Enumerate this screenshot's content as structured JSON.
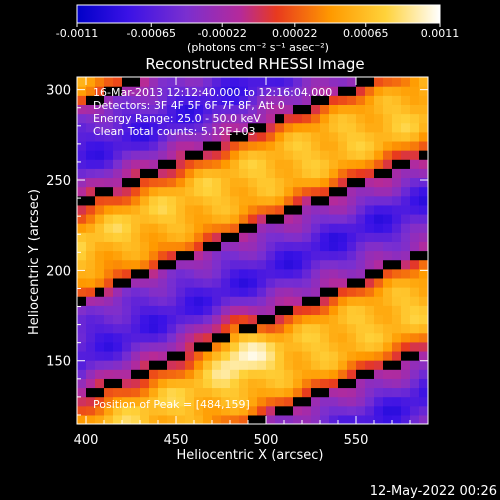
{
  "colorbar": {
    "ticks": [
      "-0.0011",
      "-0.00065",
      "-0.00022",
      "0.00022",
      "0.00065",
      "0.0011"
    ],
    "tick_values": [
      -0.0011,
      -0.00065,
      -0.00022,
      0.00022,
      0.00065,
      0.0011
    ],
    "range": [
      -0.0011,
      0.0011
    ],
    "units": "(photons cm⁻² s⁻¹ asec⁻²)",
    "colors": [
      "#0000c8",
      "#3a12e6",
      "#7a2fd0",
      "#b52a9a",
      "#e83a1e",
      "#ff9a00",
      "#ffd23a",
      "#ffffff"
    ]
  },
  "title": "Reconstructed RHESSI Image",
  "annotations": {
    "time": "16-Mar-2013 12:12:40.000 to 12:16:04.000",
    "detectors": "Detectors: 3F 4F 5F 6F 7F 8F, Att 0",
    "energy": "Energy Range: 25.0 - 50.0 keV",
    "clean": "Clean     Total counts: 5.12E+03",
    "peak": "Position of Peak = [484,159]"
  },
  "footer_date": "12-May-2022 00:26",
  "chart_data": {
    "type": "heatmap",
    "title": "Reconstructed RHESSI Image",
    "xlabel": "Heliocentric X (arcsec)",
    "ylabel": "Heliocentric Y (arcsec)",
    "xlim": [
      395,
      590
    ],
    "ylim": [
      115,
      307
    ],
    "xticks": [
      400,
      450,
      500,
      550
    ],
    "xtick_labels": [
      "400",
      "450",
      "500",
      "550"
    ],
    "yticks": [
      150,
      200,
      250,
      300
    ],
    "ytick_labels": [
      "150",
      "200",
      "250",
      "300"
    ],
    "value_range": [
      -0.0011,
      0.0011
    ],
    "pattern": "diagonal alternating positive (yellow) and negative (blue) bands",
    "peak": [
      484,
      159
    ]
  }
}
